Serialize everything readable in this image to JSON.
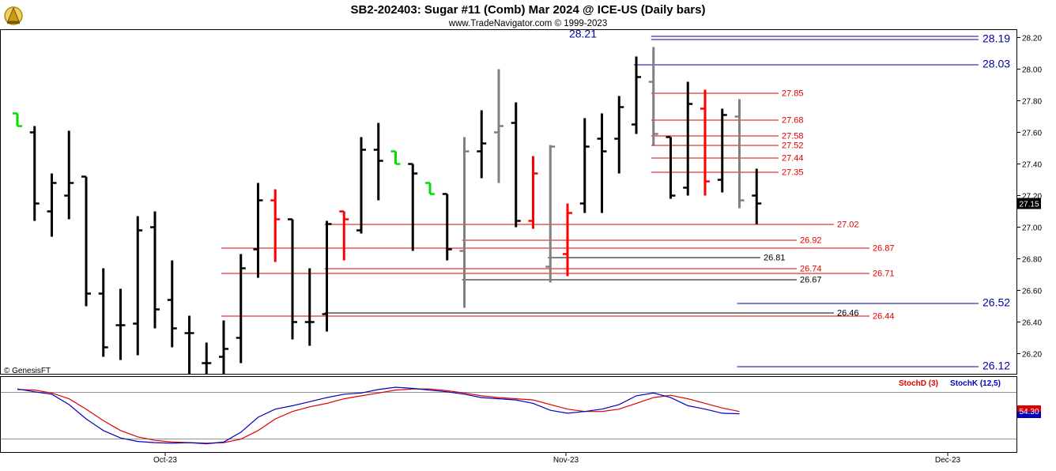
{
  "header": {
    "title": "SB2-202403:  Sugar #11 (Comb) Mar 2024 @ ICE-US  (Daily bars)",
    "subtitle": "www.TradeNavigator.com © 1999-2023",
    "watermark": "© GenesisFT"
  },
  "colors": {
    "bar_up": "#000000",
    "bar_gray": "#808080",
    "bar_red": "#ff0000",
    "bar_green": "#00dd00",
    "line_red": "#e00000",
    "line_blue": "#0000a0",
    "line_black": "#000000",
    "stoch_d": "#e00000",
    "stoch_k": "#0000c0",
    "last_price_bg": "#000000",
    "stoch_value_bg_top": "#e00000",
    "stoch_value_bg_bottom": "#0000c0"
  },
  "chart_data": {
    "type": "ohlc",
    "title": "SB2-202403:  Sugar #11 (Comb) Mar 2024 @ ICE-US  (Daily bars)",
    "ylim": [
      26.1,
      28.22
    ],
    "y_ticks": [
      "28.20",
      "28.00",
      "27.80",
      "27.60",
      "27.40",
      "27.20",
      "27.00",
      "26.80",
      "26.60",
      "26.40",
      "26.20"
    ],
    "x_ticks": [
      "Oct-23",
      "Nov-23",
      "Dec-23"
    ],
    "last_price": "27.15",
    "bars": [
      {
        "o": 27.72,
        "h": 27.72,
        "l": 27.64,
        "c": 27.64,
        "color": "green"
      },
      {
        "o": 27.6,
        "h": 27.64,
        "l": 27.04,
        "c": 27.15,
        "color": "black"
      },
      {
        "o": 27.1,
        "h": 27.34,
        "l": 26.94,
        "c": 27.28,
        "color": "black"
      },
      {
        "o": 27.2,
        "h": 27.61,
        "l": 27.05,
        "c": 27.28,
        "color": "black"
      },
      {
        "o": 27.32,
        "h": 27.32,
        "l": 26.5,
        "c": 26.58,
        "color": "black"
      },
      {
        "o": 26.58,
        "h": 26.74,
        "l": 26.18,
        "c": 26.24,
        "color": "black"
      },
      {
        "o": 26.38,
        "h": 26.61,
        "l": 26.16,
        "c": 26.38,
        "color": "black"
      },
      {
        "o": 26.39,
        "h": 27.07,
        "l": 26.19,
        "c": 26.98,
        "color": "black"
      },
      {
        "o": 27.0,
        "h": 27.1,
        "l": 26.36,
        "c": 26.48,
        "color": "black"
      },
      {
        "o": 26.54,
        "h": 26.79,
        "l": 26.24,
        "c": 26.36,
        "color": "black"
      },
      {
        "o": 26.33,
        "h": 26.44,
        "l": 26.07,
        "c": 26.33,
        "color": "black"
      },
      {
        "o": 26.14,
        "h": 26.27,
        "l": 26.07,
        "c": 26.14,
        "color": "black"
      },
      {
        "o": 26.18,
        "h": 26.41,
        "l": 26.07,
        "c": 26.23,
        "color": "black"
      },
      {
        "o": 26.3,
        "h": 26.83,
        "l": 26.14,
        "c": 26.74,
        "color": "black"
      },
      {
        "o": 26.86,
        "h": 27.28,
        "l": 26.68,
        "c": 27.17,
        "color": "black"
      },
      {
        "o": 27.17,
        "h": 27.24,
        "l": 26.78,
        "c": 27.05,
        "color": "red"
      },
      {
        "o": 27.05,
        "h": 27.05,
        "l": 26.29,
        "c": 26.4,
        "color": "black"
      },
      {
        "o": 26.4,
        "h": 26.74,
        "l": 26.25,
        "c": 26.4,
        "color": "black"
      },
      {
        "o": 26.45,
        "h": 27.04,
        "l": 26.34,
        "c": 27.02,
        "color": "black"
      },
      {
        "o": 27.1,
        "h": 27.1,
        "l": 26.79,
        "c": 27.05,
        "color": "red"
      },
      {
        "o": 26.98,
        "h": 27.57,
        "l": 26.96,
        "c": 27.49,
        "color": "black"
      },
      {
        "o": 27.49,
        "h": 27.66,
        "l": 27.17,
        "c": 27.42,
        "color": "black"
      },
      {
        "o": 27.48,
        "h": 27.48,
        "l": 27.4,
        "c": 27.4,
        "color": "green"
      },
      {
        "o": 27.4,
        "h": 27.4,
        "l": 26.85,
        "c": 27.34,
        "color": "black"
      },
      {
        "o": 27.28,
        "h": 27.28,
        "l": 27.21,
        "c": 27.21,
        "color": "green"
      },
      {
        "o": 27.21,
        "h": 27.21,
        "l": 26.79,
        "c": 26.86,
        "color": "black"
      },
      {
        "o": 26.85,
        "h": 27.57,
        "l": 26.49,
        "c": 27.48,
        "color": "gray"
      },
      {
        "o": 27.48,
        "h": 27.74,
        "l": 27.31,
        "c": 27.53,
        "color": "black"
      },
      {
        "o": 27.6,
        "h": 28.0,
        "l": 27.28,
        "c": 27.64,
        "color": "gray"
      },
      {
        "o": 27.66,
        "h": 27.79,
        "l": 27.0,
        "c": 27.04,
        "color": "black"
      },
      {
        "o": 27.04,
        "h": 27.45,
        "l": 26.99,
        "c": 27.34,
        "color": "red"
      },
      {
        "o": 26.75,
        "h": 27.52,
        "l": 26.65,
        "c": 27.51,
        "color": "gray"
      },
      {
        "o": 26.83,
        "h": 27.15,
        "l": 26.69,
        "c": 27.09,
        "color": "red"
      },
      {
        "o": 27.15,
        "h": 27.69,
        "l": 27.09,
        "c": 27.51,
        "color": "black"
      },
      {
        "o": 27.56,
        "h": 27.72,
        "l": 27.09,
        "c": 27.48,
        "color": "black"
      },
      {
        "o": 27.56,
        "h": 27.83,
        "l": 27.34,
        "c": 27.76,
        "color": "black"
      },
      {
        "o": 27.65,
        "h": 28.08,
        "l": 27.59,
        "c": 27.95,
        "color": "black"
      },
      {
        "o": 27.92,
        "h": 28.14,
        "l": 27.52,
        "c": 27.59,
        "color": "gray"
      },
      {
        "o": 27.57,
        "h": 27.57,
        "l": 27.18,
        "c": 27.2,
        "color": "black"
      },
      {
        "o": 27.25,
        "h": 27.92,
        "l": 27.2,
        "c": 27.78,
        "color": "black"
      },
      {
        "o": 27.75,
        "h": 27.87,
        "l": 27.2,
        "c": 27.29,
        "color": "red"
      },
      {
        "o": 27.3,
        "h": 27.75,
        "l": 27.22,
        "c": 27.71,
        "color": "black"
      },
      {
        "o": 27.7,
        "h": 27.81,
        "l": 27.12,
        "c": 27.17,
        "color": "gray"
      },
      {
        "o": 27.2,
        "h": 27.37,
        "l": 27.02,
        "c": 27.15,
        "color": "black"
      }
    ],
    "levels": [
      {
        "label": "28.21",
        "value": 28.21,
        "color": "blue",
        "x_start_bar": 37,
        "label_pos": "left-top"
      },
      {
        "label": "28.19",
        "value": 28.19,
        "color": "blue",
        "x_start_bar": 37,
        "label_pos": "right"
      },
      {
        "label": "28.03",
        "value": 28.03,
        "color": "blue",
        "x_start_bar": 36,
        "label_pos": "right"
      },
      {
        "label": "27.85",
        "value": 27.85,
        "color": "red",
        "x_start_bar": 37,
        "label_pos": "mid"
      },
      {
        "label": "27.68",
        "value": 27.68,
        "color": "red",
        "x_start_bar": 37,
        "label_pos": "mid"
      },
      {
        "label": "27.58",
        "value": 27.58,
        "color": "red",
        "x_start_bar": 37,
        "label_pos": "mid"
      },
      {
        "label": "27.52",
        "value": 27.52,
        "color": "red",
        "x_start_bar": 37,
        "label_pos": "mid"
      },
      {
        "label": "27.44",
        "value": 27.44,
        "color": "red",
        "x_start_bar": 37,
        "label_pos": "mid"
      },
      {
        "label": "27.35",
        "value": 27.35,
        "color": "red",
        "x_start_bar": 37,
        "label_pos": "mid"
      },
      {
        "label": "27.02",
        "value": 27.02,
        "color": "red",
        "x_start_bar": 18,
        "label_pos": "mid2"
      },
      {
        "label": "26.92",
        "value": 26.92,
        "color": "red",
        "x_start_bar": 26,
        "label_pos": "mid3"
      },
      {
        "label": "26.87",
        "value": 26.87,
        "color": "red",
        "x_start_bar": 12,
        "label_pos": "mid4"
      },
      {
        "label": "26.81",
        "value": 26.81,
        "color": "black",
        "x_start_bar": 31,
        "label_pos": "mid5"
      },
      {
        "label": "26.74",
        "value": 26.74,
        "color": "red",
        "x_start_bar": 18,
        "label_pos": "mid3"
      },
      {
        "label": "26.71",
        "value": 26.71,
        "color": "red",
        "x_start_bar": 12,
        "label_pos": "mid4"
      },
      {
        "label": "26.67",
        "value": 26.67,
        "color": "black",
        "x_start_bar": 26,
        "label_pos": "mid3b"
      },
      {
        "label": "26.52",
        "value": 26.52,
        "color": "blue",
        "x_start_bar": 42,
        "label_pos": "right"
      },
      {
        "label": "26.46",
        "value": 26.46,
        "color": "black",
        "x_start_bar": 18,
        "label_pos": "mid2"
      },
      {
        "label": "26.44",
        "value": 26.44,
        "color": "red",
        "x_start_bar": 12,
        "label_pos": "mid4"
      },
      {
        "label": "26.12",
        "value": 26.12,
        "color": "blue",
        "x_start_bar": 42,
        "label_pos": "right"
      }
    ],
    "stochastic": {
      "legend_d": "StochD (3)",
      "legend_k": "StochK (12,5)",
      "value_label": "54.30",
      "ylim": [
        0,
        100
      ],
      "k": [
        97,
        92,
        88,
        70,
        45,
        25,
        12,
        6,
        4,
        3,
        4,
        2,
        5,
        22,
        48,
        62,
        68,
        75,
        82,
        88,
        90,
        96,
        100,
        98,
        95,
        92,
        88,
        82,
        80,
        78,
        72,
        60,
        55,
        58,
        62,
        70,
        85,
        90,
        82,
        68,
        62,
        55,
        54
      ],
      "d": [
        96,
        95,
        90,
        80,
        62,
        42,
        25,
        14,
        8,
        5,
        4,
        3,
        4,
        10,
        25,
        45,
        58,
        66,
        72,
        80,
        85,
        90,
        95,
        97,
        97,
        94,
        90,
        85,
        82,
        80,
        78,
        70,
        62,
        58,
        58,
        62,
        72,
        82,
        86,
        80,
        72,
        64,
        58
      ]
    }
  }
}
